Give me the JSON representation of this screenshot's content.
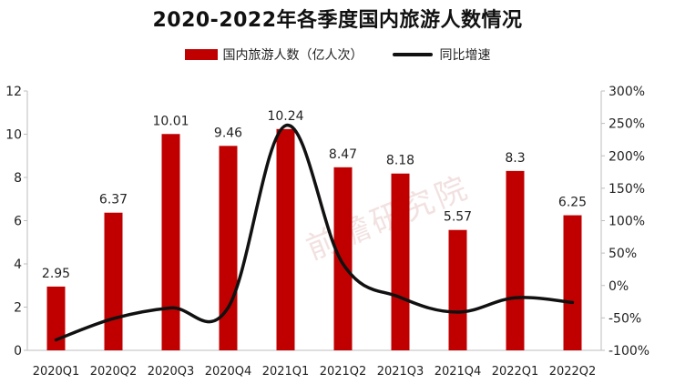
{
  "title": "2020-2022年各季度国内旅游人数情况",
  "colors": {
    "bar": "#c00000",
    "line": "#111111",
    "axis": "#bdbdbd",
    "text": "#222222"
  },
  "watermark": "前瞻研究院",
  "chart_data": {
    "type": "bar",
    "categories": [
      "2020Q1",
      "2020Q2",
      "2020Q3",
      "2020Q4",
      "2021Q1",
      "2021Q2",
      "2021Q3",
      "2021Q4",
      "2022Q1",
      "2022Q2"
    ],
    "series": [
      {
        "name": "国内旅游人数（亿人次）",
        "type": "bar",
        "axis": "left",
        "values": [
          2.95,
          6.37,
          10.01,
          9.46,
          10.24,
          8.47,
          8.18,
          5.57,
          8.3,
          6.25
        ],
        "labels": [
          "2.95",
          "6.37",
          "10.01",
          "9.46",
          "10.24",
          "8.47",
          "8.18",
          "5.57",
          "8.3",
          "6.25"
        ]
      },
      {
        "name": "同比增速",
        "type": "line",
        "axis": "right",
        "smooth": true,
        "values": [
          -83.8,
          -51.0,
          -34.5,
          -34.0,
          246.7,
          33.3,
          -18.4,
          -41.1,
          -18.9,
          -26.2
        ]
      }
    ],
    "y_left": {
      "min": 0,
      "max": 12,
      "ticks": [
        0,
        2,
        4,
        6,
        8,
        10,
        12
      ],
      "tick_labels": [
        "0",
        "2",
        "4",
        "6",
        "8",
        "10",
        "12"
      ]
    },
    "y_right": {
      "min": -100,
      "max": 300,
      "ticks": [
        -100,
        -50,
        0,
        50,
        100,
        150,
        200,
        250,
        300
      ],
      "tick_labels": [
        "-100%",
        "-50%",
        "0%",
        "50%",
        "100%",
        "150%",
        "200%",
        "250%",
        "300%"
      ]
    },
    "grid": false,
    "legend_position": "top"
  }
}
